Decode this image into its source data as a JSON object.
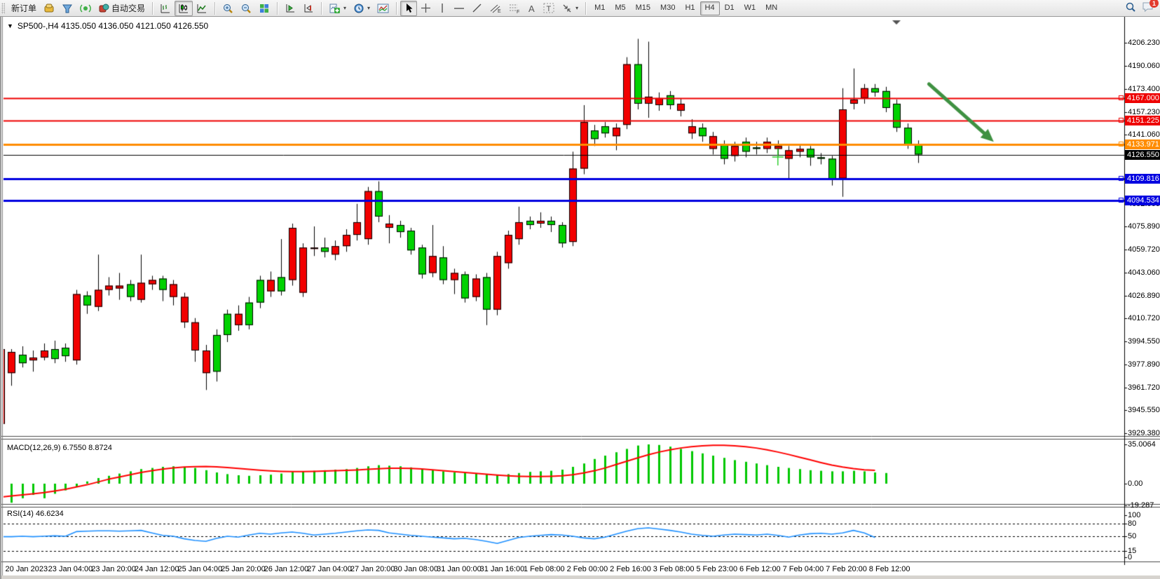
{
  "toolbar": {
    "new_order": "新订单",
    "autotrading": "自动交易",
    "notification_count": "1",
    "timeframes": [
      "M1",
      "M5",
      "M15",
      "M30",
      "H1",
      "H4",
      "D1",
      "W1",
      "MN"
    ],
    "active_timeframe": "H4"
  },
  "chart": {
    "title": "SP500-,H4  4135.050 4136.050 4121.050 4126.550",
    "collapse_glyph": "▼"
  },
  "indicators": {
    "macd_label": "MACD(12,26,9) 6.7550 8.8724",
    "rsi_label": "RSI(14) 46.6234"
  },
  "axis": {
    "price_ticks": [
      "4206.230",
      "4190.060",
      "4173.400",
      "4157.230",
      "4141.060",
      "4124.890",
      "4108.230",
      "4092.060",
      "4075.890",
      "4059.720",
      "4043.060",
      "4026.890",
      "4010.720",
      "3994.550",
      "3977.890",
      "3961.720",
      "3945.550",
      "3929.380"
    ],
    "macd_ticks": [
      {
        "label": "35.0064",
        "value": 35.0064
      },
      {
        "label": "0.00",
        "value": 0
      },
      {
        "label": "-19.287",
        "value": -19.287
      }
    ],
    "rsi_ticks": [
      {
        "label": "100",
        "value": 100
      },
      {
        "label": "80",
        "value": 80
      },
      {
        "label": "50",
        "value": 50
      },
      {
        "label": "15",
        "value": 15
      },
      {
        "label": "0",
        "value": 0
      }
    ],
    "time_ticks": [
      "20 Jan 2023",
      "23 Jan 04:00",
      "23 Jan 20:00",
      "24 Jan 12:00",
      "25 Jan 04:00",
      "25 Jan 20:00",
      "26 Jan 12:00",
      "27 Jan 04:00",
      "27 Jan 20:00",
      "30 Jan 08:00",
      "31 Jan 00:00",
      "31 Jan 16:00",
      "1 Feb 08:00",
      "2 Feb 00:00",
      "2 Feb 16:00",
      "3 Feb 08:00",
      "5 Feb 23:00",
      "6 Feb 12:00",
      "7 Feb 04:00",
      "7 Feb 20:00",
      "8 Feb 12:00"
    ]
  },
  "levels": [
    {
      "text": "4167.000",
      "value": 4167.0,
      "color": "#ee0000",
      "width": 2
    },
    {
      "text": "4151.225",
      "value": 4151.225,
      "color": "#ee0000",
      "width": 2
    },
    {
      "text": "4133.971",
      "value": 4133.971,
      "color": "#ff8c00",
      "width": 3
    },
    {
      "text": "4126.550",
      "value": 4126.55,
      "color": "#000000",
      "width": 1
    },
    {
      "text": "4109.816",
      "value": 4109.816,
      "color": "#0000e0",
      "width": 3
    },
    {
      "text": "4094.534",
      "value": 4094.534,
      "color": "#0000e0",
      "width": 3
    }
  ],
  "chart_data": {
    "type": "candlestick",
    "symbol": "SP500-",
    "period": "H4",
    "ohlc_header": {
      "open": "4135.050",
      "high": "4136.050",
      "low": "4121.050",
      "close": "4126.550"
    },
    "rsi_levels": [
      80,
      50,
      15
    ],
    "candles": [
      [
        3989,
        3990,
        3930,
        3936
      ],
      [
        3987,
        3989,
        3963,
        3972
      ],
      [
        3979,
        3991,
        3976,
        3985
      ],
      [
        3983,
        3988,
        3973,
        3981
      ],
      [
        3988,
        3993,
        3981,
        3983
      ],
      [
        3982,
        3995,
        3979,
        3989
      ],
      [
        3984,
        3993,
        3980,
        3990
      ],
      [
        4028,
        4031,
        3978,
        3981
      ],
      [
        4020,
        4030,
        4014,
        4027
      ],
      [
        4031,
        4056,
        4016,
        4019
      ],
      [
        4034,
        4040,
        4027,
        4031
      ],
      [
        4034,
        4043,
        4024,
        4032
      ],
      [
        4026,
        4038,
        4023,
        4035
      ],
      [
        4036,
        4056,
        4022,
        4024
      ],
      [
        4038,
        4041,
        4031,
        4035
      ],
      [
        4031,
        4041,
        4023,
        4039
      ],
      [
        4035,
        4038,
        4020,
        4026
      ],
      [
        4026,
        4029,
        4004,
        4008
      ],
      [
        4008,
        4011,
        3980,
        3988
      ],
      [
        3988,
        3992,
        3960,
        3972
      ],
      [
        3973,
        4003,
        3966,
        3999
      ],
      [
        3999,
        4017,
        3994,
        4014
      ],
      [
        4014,
        4020,
        4002,
        4006
      ],
      [
        4006,
        4026,
        4003,
        4022
      ],
      [
        4022,
        4041,
        4018,
        4038
      ],
      [
        4038,
        4044,
        4026,
        4030
      ],
      [
        4030,
        4067,
        4027,
        4040
      ],
      [
        4075,
        4078,
        4034,
        4038
      ],
      [
        4061,
        4064,
        4026,
        4029
      ],
      [
        4061,
        4076,
        4055,
        4060
      ],
      [
        4058,
        4068,
        4054,
        4061
      ],
      [
        4062,
        4066,
        4052,
        4056
      ],
      [
        4070,
        4074,
        4058,
        4062
      ],
      [
        4079,
        4092,
        4066,
        4070
      ],
      [
        4101,
        4104,
        4063,
        4067
      ],
      [
        4083,
        4108,
        4079,
        4101
      ],
      [
        4078,
        4084,
        4064,
        4075
      ],
      [
        4072,
        4080,
        4068,
        4077
      ],
      [
        4059,
        4075,
        4056,
        4073
      ],
      [
        4042,
        4063,
        4039,
        4061
      ],
      [
        4055,
        4077,
        4040,
        4043
      ],
      [
        4038,
        4062,
        4035,
        4054
      ],
      [
        4043,
        4046,
        4028,
        4038
      ],
      [
        4025,
        4044,
        4022,
        4042
      ],
      [
        4039,
        4042,
        4023,
        4026
      ],
      [
        4017,
        4043,
        4006,
        4040
      ],
      [
        4055,
        4058,
        4013,
        4017
      ],
      [
        4070,
        4073,
        4046,
        4050
      ],
      [
        4079,
        4090,
        4063,
        4067
      ],
      [
        4077,
        4083,
        4074,
        4080
      ],
      [
        4080,
        4086,
        4075,
        4078
      ],
      [
        4077,
        4083,
        4072,
        4080
      ],
      [
        4064,
        4079,
        4061,
        4077
      ],
      [
        4117,
        4129,
        4062,
        4065
      ],
      [
        4150,
        4162,
        4113,
        4117
      ],
      [
        4138,
        4148,
        4133,
        4144
      ],
      [
        4142,
        4150,
        4139,
        4147
      ],
      [
        4146,
        4149,
        4130,
        4140
      ],
      [
        4191,
        4196,
        4145,
        4148
      ],
      [
        4163,
        4209,
        4159,
        4191
      ],
      [
        4168,
        4207,
        4153,
        4163
      ],
      [
        4167,
        4171,
        4158,
        4162
      ],
      [
        4162,
        4172,
        4159,
        4169
      ],
      [
        4163,
        4167,
        4154,
        4158
      ],
      [
        4147,
        4152,
        4138,
        4142
      ],
      [
        4140,
        4149,
        4136,
        4146
      ],
      [
        4140,
        4143,
        4127,
        4131
      ],
      [
        4124,
        4137,
        4120,
        4134
      ],
      [
        4133,
        4136,
        4122,
        4126
      ],
      [
        4129,
        4139,
        4125,
        4136
      ],
      [
        4131,
        4136,
        4127,
        4132
      ],
      [
        4136,
        4139,
        4128,
        4131
      ],
      [
        4133,
        4137,
        4126,
        4131
      ],
      [
        4130,
        4133,
        4109,
        4124
      ],
      [
        4131,
        4134,
        4125,
        4129
      ],
      [
        4125,
        4133,
        4119,
        4131
      ],
      [
        4124,
        4128,
        4120,
        4125
      ],
      [
        4109,
        4126,
        4105,
        4124
      ],
      [
        4159,
        4174,
        4097,
        4110
      ],
      [
        4166,
        4188,
        4159,
        4163
      ],
      [
        4174,
        4177,
        4163,
        4167
      ],
      [
        4171,
        4177,
        4168,
        4174
      ],
      [
        4160,
        4175,
        4157,
        4172
      ],
      [
        4146,
        4166,
        4143,
        4163
      ],
      [
        4134,
        4149,
        4131,
        4146
      ],
      [
        4127,
        4137,
        4121,
        4134
      ]
    ],
    "macd_hist": [
      -21,
      -17,
      -13,
      -10,
      -13,
      -9,
      -6,
      -3,
      2,
      5,
      7,
      9,
      11,
      13,
      14,
      15,
      15.5,
      15,
      14,
      12,
      10,
      8.5,
      7.5,
      7,
      7.5,
      8,
      9,
      10.5,
      11,
      11.5,
      12,
      12.5,
      13,
      14,
      15.5,
      16.5,
      16,
      15.5,
      14.5,
      13,
      12,
      11,
      10,
      9.5,
      9,
      8.5,
      8,
      8.5,
      9.5,
      10.5,
      11,
      11.5,
      12.5,
      15,
      18,
      22,
      25,
      28,
      31,
      34,
      35,
      34.5,
      33,
      31,
      29,
      27,
      25,
      23,
      21,
      19.5,
      18,
      16.5,
      15,
      14,
      13,
      12,
      11.5,
      11,
      11,
      11.5,
      11,
      10,
      9.5
    ],
    "macd_signal": [
      -12,
      -11,
      -10,
      -9,
      -8,
      -6.5,
      -5,
      -3,
      -1,
      1.5,
      4,
      6,
      8,
      10,
      11.5,
      13,
      14,
      14.8,
      15.2,
      15.3,
      15,
      14.4,
      13.6,
      12.8,
      12,
      11.4,
      11,
      10.8,
      10.8,
      11,
      11.2,
      11.5,
      11.8,
      12.2,
      12.8,
      13.3,
      13.7,
      13.8,
      13.6,
      13.1,
      12.4,
      11.6,
      10.8,
      10,
      9.2,
      8.4,
      7.6,
      7,
      6.6,
      6.4,
      6.4,
      6.6,
      7,
      8,
      9.5,
      11.5,
      14,
      17,
      20,
      23,
      25.8,
      28.2,
      30.2,
      31.8,
      33,
      33.8,
      34.2,
      34.2,
      33.8,
      33,
      31.8,
      30.2,
      28.2,
      26,
      23.6,
      21.2,
      18.8,
      16.6,
      14.8,
      13.4,
      12.4,
      11.8
    ],
    "rsi": [
      49,
      49,
      50,
      49,
      50,
      51,
      50,
      61,
      62,
      63,
      63,
      62,
      63,
      64,
      58,
      52,
      50,
      44,
      40,
      38,
      45,
      50,
      48,
      53,
      57,
      55,
      58,
      60,
      57,
      53,
      55,
      57,
      60,
      63,
      65,
      64,
      58,
      55,
      52,
      50,
      48,
      46,
      44,
      45,
      42,
      38,
      33,
      40,
      47,
      50,
      52,
      54,
      53,
      50,
      46,
      44,
      48,
      55,
      62,
      68,
      70,
      67,
      64,
      60,
      55,
      52,
      50,
      53,
      55,
      54,
      53,
      55,
      52,
      48,
      53,
      56,
      57,
      55,
      58,
      64,
      58,
      47
    ],
    "arrow_annotation": {
      "from_bar": 86,
      "from_price": 4177,
      "to_bar": 92,
      "to_price": 4136,
      "color": "#3f9142"
    },
    "cross_marker": {
      "bar": 72,
      "price": 4125.2,
      "color": "#32cd32"
    },
    "colors": {
      "up": "#00d200",
      "down": "#f20000",
      "wick": "#000000",
      "macd_hist": "#00c800",
      "macd_signal": "#ff0000",
      "rsi_line": "#1e90ff"
    }
  }
}
